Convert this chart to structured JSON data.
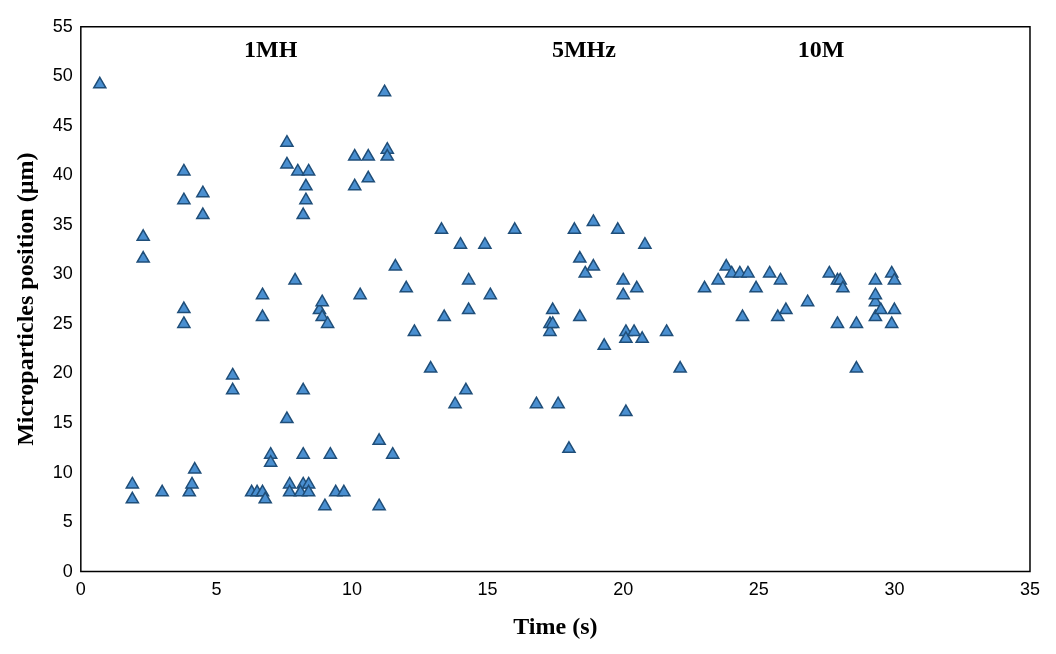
{
  "chart_data": {
    "type": "scatter",
    "xlabel": "Time (s)",
    "ylabel": "Microparticles position (µm)",
    "annotations": [
      "1MH",
      "5MHz",
      "10M"
    ],
    "xlim": [
      0,
      35
    ],
    "xticks": [
      0,
      5,
      10,
      15,
      20,
      25,
      30,
      35
    ],
    "ylim": [
      0,
      55
    ],
    "yticks": [
      0,
      5,
      10,
      15,
      20,
      25,
      30,
      35,
      40,
      45,
      50,
      55
    ],
    "grid": false,
    "legend": false,
    "marker": "triangle",
    "series": [
      {
        "color": "#4a8fd0",
        "x": [
          0.7,
          1.9,
          1.9,
          2.3,
          2.3,
          3.0,
          3.8,
          3.8,
          3.8,
          3.8,
          4.0,
          4.1,
          4.2,
          4.5,
          4.5,
          5.6,
          5.6,
          6.3,
          6.5,
          6.7,
          6.8,
          6.7,
          6.7,
          7.0,
          7.0,
          7.6,
          7.6,
          7.6,
          7.7,
          7.7,
          7.9,
          8.0,
          8.2,
          8.1,
          8.2,
          8.2,
          8.2,
          8.3,
          8.3,
          8.4,
          8.4,
          8.4,
          8.8,
          8.9,
          8.9,
          9.1,
          9.0,
          9.2,
          9.4,
          9.7,
          10.1,
          10.1,
          10.3,
          10.6,
          10.6,
          11.0,
          11.0,
          11.2,
          11.3,
          11.3,
          11.5,
          11.6,
          12.0,
          12.3,
          12.9,
          13.3,
          13.4,
          13.8,
          14.0,
          14.2,
          14.3,
          14.3,
          14.9,
          15.1,
          16.0,
          16.8,
          17.3,
          17.3,
          17.4,
          17.4,
          17.6,
          18.0,
          18.2,
          18.4,
          18.4,
          18.6,
          18.9,
          18.9,
          19.3,
          19.8,
          20.0,
          20.0,
          20.1,
          20.1,
          20.1,
          20.4,
          20.5,
          20.7,
          20.8,
          21.6,
          22.1,
          23.0,
          23.5,
          23.8,
          24.0,
          24.3,
          24.4,
          24.6,
          24.9,
          25.4,
          25.7,
          25.8,
          26.0,
          26.8,
          27.6,
          27.9,
          27.9,
          28.0,
          28.1,
          28.6,
          28.6,
          29.3,
          29.3,
          29.3,
          29.3,
          29.5,
          29.9,
          29.9,
          30.0,
          30.0
        ],
        "values": [
          49.2,
          8.8,
          7.3,
          33.8,
          31.6,
          8.0,
          40.4,
          37.5,
          26.5,
          25.0,
          8.0,
          8.8,
          10.3,
          38.2,
          36.0,
          19.8,
          18.3,
          8.0,
          8.0,
          8.0,
          7.3,
          27.9,
          25.7,
          11.8,
          11.0,
          43.3,
          41.1,
          15.4,
          8.8,
          8.0,
          29.4,
          40.4,
          8.8,
          8.0,
          11.8,
          18.3,
          36.0,
          37.5,
          38.9,
          40.4,
          8.8,
          8.0,
          26.4,
          27.2,
          25.7,
          25.0,
          6.6,
          11.8,
          8.0,
          8.0,
          41.9,
          38.9,
          27.9,
          41.9,
          39.7,
          13.2,
          6.6,
          48.4,
          42.6,
          41.9,
          11.8,
          30.8,
          28.6,
          24.2,
          20.5,
          34.5,
          25.7,
          16.9,
          33.0,
          18.3,
          29.4,
          26.4,
          33.0,
          27.9,
          34.5,
          16.9,
          25.0,
          24.2,
          26.4,
          25.0,
          16.9,
          12.4,
          34.5,
          31.6,
          25.7,
          30.1,
          35.3,
          30.8,
          22.8,
          34.5,
          29.4,
          27.9,
          24.2,
          23.5,
          16.1,
          24.2,
          28.6,
          23.5,
          33.0,
          24.2,
          20.5,
          28.6,
          29.4,
          30.8,
          30.1,
          30.1,
          25.7,
          30.1,
          28.6,
          30.1,
          25.7,
          29.4,
          26.4,
          27.2,
          30.1,
          25.0,
          29.4,
          29.4,
          28.6,
          25.0,
          20.5,
          29.4,
          27.2,
          27.9,
          25.7,
          26.4,
          30.1,
          25.0,
          29.4,
          26.4
        ]
      }
    ]
  }
}
